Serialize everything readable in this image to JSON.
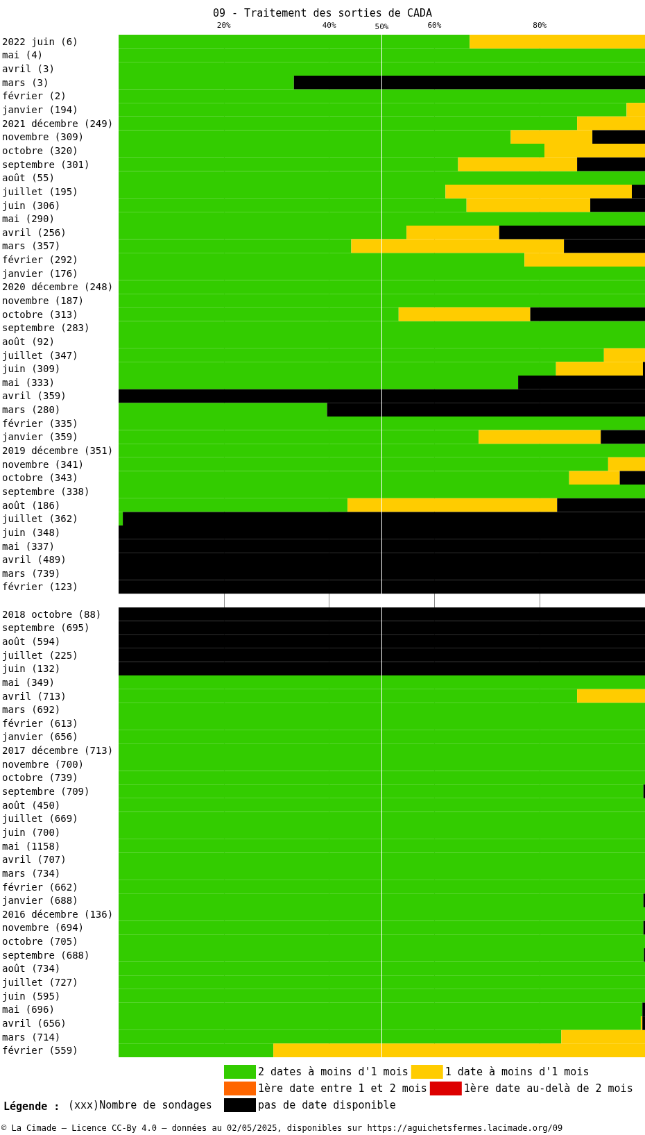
{
  "chart_data": {
    "type": "bar",
    "orientation": "horizontal",
    "stacked": true,
    "title": "09 - Traitement des sorties de CADA",
    "categories": [
      "2022 juin (6)",
      "mai (4)",
      "avril (3)",
      "mars (3)",
      "février (2)",
      "janvier (194)",
      "2021 décembre (249)",
      "novembre (309)",
      "octobre (320)",
      "septembre (301)",
      "août (55)",
      "juillet (195)",
      "juin (306)",
      "mai (290)",
      "avril (256)",
      "mars (357)",
      "février (292)",
      "janvier (176)",
      "2020 décembre (248)",
      "novembre (187)",
      "octobre (313)",
      "septembre (283)",
      "août (92)",
      "juillet (347)",
      "juin (309)",
      "mai (333)",
      "avril (359)",
      "mars (280)",
      "février (335)",
      "janvier (359)",
      "2019 décembre (351)",
      "novembre (341)",
      "octobre (343)",
      "septembre (338)",
      "août (186)",
      "juillet (362)",
      "juin (348)",
      "mai (337)",
      "avril (489)",
      "mars (739)",
      "février (123)",
      null,
      "2018 octobre (88)",
      "septembre (695)",
      "août (594)",
      "juillet (225)",
      "juin (132)",
      "mai (349)",
      "avril (713)",
      "mars (692)",
      "février (613)",
      "janvier (656)",
      "2017 décembre (713)",
      "novembre (700)",
      "octobre (739)",
      "septembre (709)",
      "août (450)",
      "juillet (669)",
      "juin (700)",
      "mai (1158)",
      "avril (707)",
      "mars (734)",
      "février (662)",
      "janvier (688)",
      "2016 décembre (136)",
      "novembre (694)",
      "octobre (705)",
      "septembre (688)",
      "août (734)",
      "juillet (727)",
      "juin (595)",
      "mai (696)",
      "avril (656)",
      "mars (714)",
      "février (559)"
    ],
    "series": [
      {
        "name": "2 dates à moins d'1 mois",
        "color": "#33cc00",
        "values": [
          66.7,
          100,
          100,
          33.3,
          100,
          96.5,
          87.1,
          74.5,
          80.9,
          64.5,
          100,
          62.1,
          66.1,
          100,
          54.7,
          44.2,
          77.1,
          100,
          100,
          100,
          53.2,
          100,
          100,
          92.2,
          83.1,
          75.9,
          0,
          39.6,
          100,
          68.4,
          100,
          93,
          85.6,
          100,
          43.5,
          0.8,
          0,
          0,
          0,
          0,
          0,
          null,
          0,
          0,
          0,
          0,
          0,
          100,
          87.1,
          100,
          100,
          100,
          100,
          100,
          100,
          99.7,
          100,
          100,
          100,
          100,
          100,
          100,
          100,
          99.7,
          100,
          99.7,
          100,
          99.8,
          100,
          100,
          100,
          99.5,
          99.2,
          84.1,
          29.4
        ]
      },
      {
        "name": "1 date à moins d'1 mois",
        "color": "#ffcc00",
        "values": [
          33.3,
          0,
          0,
          0,
          0,
          3.5,
          12.9,
          15.5,
          19.1,
          22.6,
          0,
          35.4,
          23.5,
          0,
          17.6,
          40.4,
          22.9,
          0,
          0,
          0,
          25,
          0,
          0,
          7.8,
          16.5,
          0,
          0,
          0,
          0,
          23.2,
          0,
          7,
          9.6,
          0,
          39.8,
          0,
          0,
          0,
          0,
          0,
          0,
          null,
          0,
          0,
          0,
          0,
          0,
          0,
          12.9,
          0,
          0,
          0,
          0,
          0,
          0,
          0,
          0,
          0,
          0,
          0,
          0,
          0,
          0,
          0,
          0,
          0,
          0,
          0,
          0,
          0,
          0,
          0,
          0.3,
          15.9,
          70.6
        ]
      },
      {
        "name": "1ère date entre 1 et 2 mois",
        "color": "#ff6600",
        "values": [
          0,
          0,
          0,
          0,
          0,
          0,
          0,
          0,
          0,
          0,
          0,
          0,
          0,
          0,
          0,
          0,
          0,
          0,
          0,
          0,
          0,
          0,
          0,
          0,
          0,
          0,
          0,
          0,
          0,
          0,
          0,
          0,
          0,
          0,
          0,
          0,
          0,
          0,
          0,
          0,
          0,
          null,
          0,
          0,
          0,
          0,
          0,
          0,
          0,
          0,
          0,
          0,
          0,
          0,
          0,
          0,
          0,
          0,
          0,
          0,
          0,
          0,
          0,
          0,
          0,
          0,
          0,
          0,
          0,
          0,
          0,
          0,
          0,
          0,
          0
        ]
      },
      {
        "name": "1ère date au-delà de 2 mois",
        "color": "#dd0000",
        "values": [
          0,
          0,
          0,
          0,
          0,
          0,
          0,
          0,
          0,
          0,
          0,
          0,
          0,
          0,
          0,
          0,
          0,
          0,
          0,
          0,
          0,
          0,
          0,
          0,
          0,
          0,
          0,
          0,
          0,
          0,
          0,
          0,
          0,
          0,
          0,
          0,
          0,
          0,
          0,
          0,
          0,
          null,
          0,
          0,
          0,
          0,
          0,
          0,
          0,
          0,
          0,
          0,
          0,
          0,
          0,
          0,
          0,
          0,
          0,
          0,
          0,
          0,
          0,
          0,
          0,
          0,
          0,
          0,
          0,
          0,
          0,
          0,
          0,
          0,
          0
        ]
      },
      {
        "name": "pas de date disponible",
        "color": "#000000",
        "values": [
          0,
          0,
          0,
          66.7,
          0,
          0,
          0,
          10,
          0,
          12.9,
          0,
          2.5,
          10.4,
          0,
          27.7,
          15.4,
          0,
          0,
          0,
          0,
          21.8,
          0,
          0,
          0,
          0.4,
          24.1,
          100,
          60.4,
          0,
          8.4,
          0,
          0,
          4.8,
          0,
          16.7,
          99.2,
          100,
          100,
          100,
          100,
          100,
          null,
          100,
          100,
          100,
          100,
          100,
          0,
          0,
          0,
          0,
          0,
          0,
          0,
          0,
          0.3,
          0,
          0,
          0,
          0,
          0,
          0,
          0,
          0.3,
          0,
          0.3,
          0,
          0.2,
          0,
          0,
          0,
          0.5,
          0.5,
          0,
          0
        ]
      }
    ],
    "xlim": [
      0,
      100
    ],
    "xticks": [
      {
        "value": 20,
        "label": "20%"
      },
      {
        "value": 40,
        "label": "40%"
      },
      {
        "value": 60,
        "label": "60%"
      },
      {
        "value": 80,
        "label": "80%"
      }
    ],
    "ref_lines": [
      {
        "axis": "x",
        "value": 50,
        "label": "50%",
        "color": "#ffffff"
      }
    ],
    "grid": "x",
    "legend": "bottom",
    "legend_title": "Légende :",
    "annotations": [
      "(xxx)Nombre de sondages",
      "© La Cimade — Licence CC-By 4.0 — données au 02/05/2025, disponibles sur https://aguichetsfermes.lacimade.org/09"
    ]
  }
}
